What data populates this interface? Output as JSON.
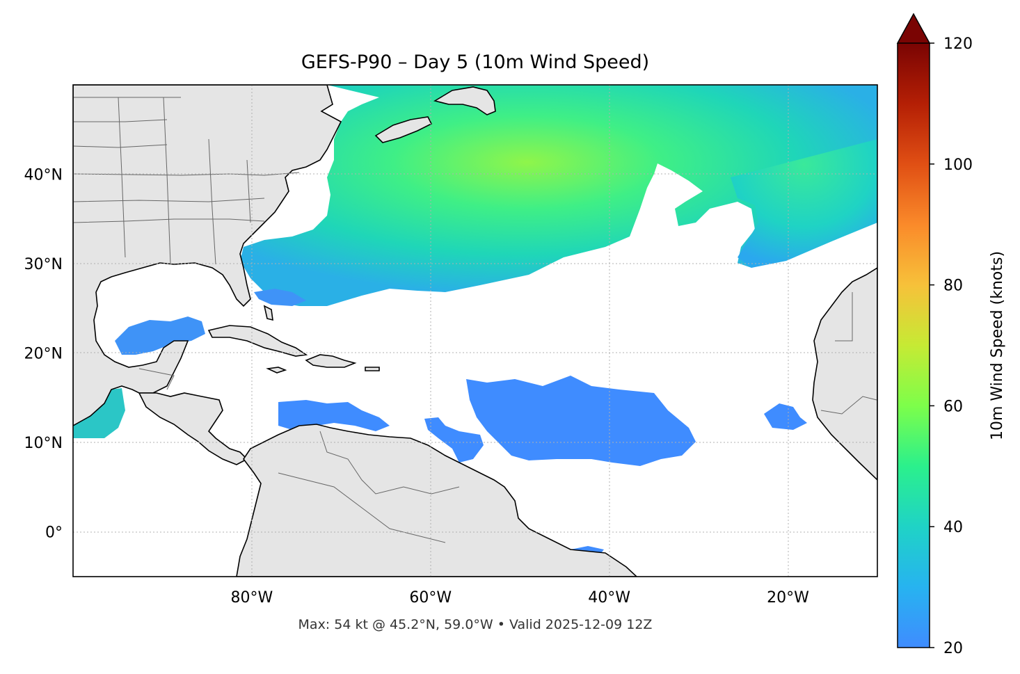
{
  "title": "GEFS-P90 – Day 5 (10m Wind Speed)",
  "footer": "Max: 54 kt @ 45.2°N, 59.0°W • Valid 2025-12-09 12Z",
  "map": {
    "lon_range": [
      -100,
      -10
    ],
    "lat_range": [
      -5,
      50
    ],
    "lon_ticks": [
      {
        "value": -80,
        "label": "80°W"
      },
      {
        "value": -60,
        "label": "60°W"
      },
      {
        "value": -40,
        "label": "40°W"
      },
      {
        "value": -20,
        "label": "20°W"
      }
    ],
    "lat_ticks": [
      {
        "value": 40,
        "label": "40°N"
      },
      {
        "value": 30,
        "label": "30°N"
      },
      {
        "value": 20,
        "label": "20°N"
      },
      {
        "value": 10,
        "label": "10°N"
      },
      {
        "value": 0,
        "label": "0°"
      }
    ],
    "gridlines": "dotted",
    "land_color": "#e5e5e5",
    "ocean_color": "#ffffff",
    "max_point": {
      "lat": 45.2,
      "lon": -59.0,
      "value_kt": 54
    }
  },
  "colorbar": {
    "label": "10m Wind Speed (knots)",
    "range": [
      20,
      120
    ],
    "extend": "max",
    "ticks": [
      {
        "value": 120,
        "label": "120"
      },
      {
        "value": 100,
        "label": "100"
      },
      {
        "value": 80,
        "label": "80"
      },
      {
        "value": 60,
        "label": "60"
      },
      {
        "value": 40,
        "label": "40"
      },
      {
        "value": 20,
        "label": "20"
      }
    ],
    "colormap": [
      "#3f8cff",
      "#1fc7d8",
      "#22ee90",
      "#9bff3a",
      "#d9d836",
      "#ffa63a",
      "#f0621c",
      "#c42a06",
      "#7a0403"
    ]
  }
}
